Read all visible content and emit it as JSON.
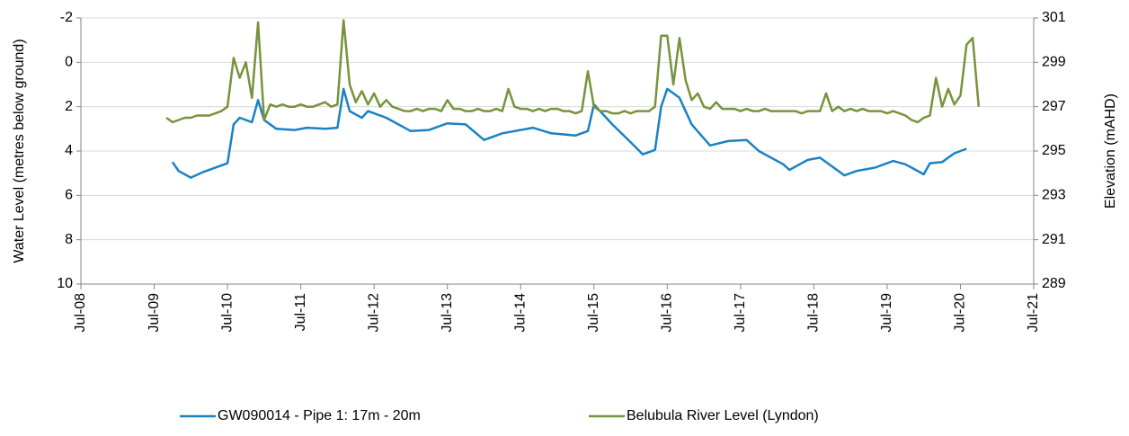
{
  "chart_data": {
    "type": "line",
    "y_label": "Water Level (metres below ground)",
    "y2_label": "Elevation (mAHD)",
    "xlim": [
      "2008-07",
      "2021-07"
    ],
    "xticks": [
      {
        "value": "2008-07",
        "label": "Jul-08"
      },
      {
        "value": "2009-07",
        "label": "Jul-09"
      },
      {
        "value": "2010-07",
        "label": "Jul-10"
      },
      {
        "value": "2011-07",
        "label": "Jul-11"
      },
      {
        "value": "2012-07",
        "label": "Jul-12"
      },
      {
        "value": "2013-07",
        "label": "Jul-13"
      },
      {
        "value": "2014-07",
        "label": "Jul-14"
      },
      {
        "value": "2015-07",
        "label": "Jul-15"
      },
      {
        "value": "2016-07",
        "label": "Jul-16"
      },
      {
        "value": "2017-07",
        "label": "Jul-17"
      },
      {
        "value": "2018-07",
        "label": "Jul-18"
      },
      {
        "value": "2019-07",
        "label": "Jul-19"
      },
      {
        "value": "2020-07",
        "label": "Jul-20"
      },
      {
        "value": "2021-07",
        "label": "Jul-21"
      }
    ],
    "ylim": [
      -2,
      10
    ],
    "y_inverted": true,
    "yticks": [
      -2,
      0,
      2,
      4,
      6,
      8,
      10
    ],
    "y2lim": [
      289,
      301
    ],
    "y2ticks": [
      289,
      291,
      293,
      295,
      297,
      299,
      301
    ],
    "grid": true,
    "legend": "bottom",
    "series": [
      {
        "name": "GW090014 - Pipe 1: 17m - 20m",
        "color": "#1a82c4",
        "x": [
          "2009-10",
          "2009-11",
          "2010-01",
          "2010-03",
          "2010-07",
          "2010-08",
          "2010-09",
          "2010-11",
          "2010-12",
          "2011-01",
          "2011-03",
          "2011-06",
          "2011-08",
          "2011-11",
          "2012-01",
          "2012-02",
          "2012-03",
          "2012-05",
          "2012-06",
          "2012-09",
          "2013-01",
          "2013-04",
          "2013-07",
          "2013-10",
          "2014-01",
          "2014-04",
          "2014-09",
          "2014-12",
          "2015-04",
          "2015-06",
          "2015-07",
          "2015-10",
          "2016-01",
          "2016-03",
          "2016-05",
          "2016-06",
          "2016-07",
          "2016-09",
          "2016-11",
          "2017-02",
          "2017-05",
          "2017-08",
          "2017-10",
          "2018-02",
          "2018-03",
          "2018-06",
          "2018-08",
          "2018-12",
          "2019-02",
          "2019-05",
          "2019-08",
          "2019-10",
          "2020-01",
          "2020-02",
          "2020-04",
          "2020-06",
          "2020-08"
        ],
        "values": [
          4.5,
          4.9,
          5.2,
          4.95,
          4.55,
          2.8,
          2.5,
          2.7,
          1.7,
          2.6,
          3.0,
          3.05,
          2.95,
          3.0,
          2.95,
          1.2,
          2.2,
          2.5,
          2.2,
          2.5,
          3.1,
          3.05,
          2.75,
          2.8,
          3.5,
          3.2,
          2.95,
          3.2,
          3.3,
          3.1,
          1.9,
          2.8,
          3.6,
          4.15,
          3.95,
          2.0,
          1.2,
          1.6,
          2.8,
          3.75,
          3.55,
          3.5,
          4.0,
          4.6,
          4.85,
          4.4,
          4.3,
          5.1,
          4.9,
          4.75,
          4.45,
          4.6,
          5.05,
          4.55,
          4.5,
          4.1,
          3.9
        ]
      },
      {
        "name": "Belubula River Level (Lyndon)",
        "color": "#77933c",
        "axis": "y2",
        "x": [
          "2009-09",
          "2009-10",
          "2009-11",
          "2009-12",
          "2010-01",
          "2010-02",
          "2010-03",
          "2010-04",
          "2010-05",
          "2010-06",
          "2010-07",
          "2010-08",
          "2010-09",
          "2010-10",
          "2010-11",
          "2010-12",
          "2011-01",
          "2011-02",
          "2011-03",
          "2011-04",
          "2011-05",
          "2011-06",
          "2011-07",
          "2011-08",
          "2011-09",
          "2011-10",
          "2011-11",
          "2011-12",
          "2012-01",
          "2012-02",
          "2012-03",
          "2012-04",
          "2012-05",
          "2012-06",
          "2012-07",
          "2012-08",
          "2012-09",
          "2012-10",
          "2012-11",
          "2012-12",
          "2013-01",
          "2013-02",
          "2013-03",
          "2013-04",
          "2013-05",
          "2013-06",
          "2013-07",
          "2013-08",
          "2013-09",
          "2013-10",
          "2013-11",
          "2013-12",
          "2014-01",
          "2014-02",
          "2014-03",
          "2014-04",
          "2014-05",
          "2014-06",
          "2014-07",
          "2014-08",
          "2014-09",
          "2014-10",
          "2014-11",
          "2014-12",
          "2015-01",
          "2015-02",
          "2015-03",
          "2015-04",
          "2015-05",
          "2015-06",
          "2015-07",
          "2015-08",
          "2015-09",
          "2015-10",
          "2015-11",
          "2015-12",
          "2016-01",
          "2016-02",
          "2016-03",
          "2016-04",
          "2016-05",
          "2016-06",
          "2016-07",
          "2016-08",
          "2016-09",
          "2016-10",
          "2016-11",
          "2016-12",
          "2017-01",
          "2017-02",
          "2017-03",
          "2017-04",
          "2017-05",
          "2017-06",
          "2017-07",
          "2017-08",
          "2017-09",
          "2017-10",
          "2017-11",
          "2017-12",
          "2018-01",
          "2018-02",
          "2018-03",
          "2018-04",
          "2018-05",
          "2018-06",
          "2018-07",
          "2018-08",
          "2018-09",
          "2018-10",
          "2018-11",
          "2018-12",
          "2019-01",
          "2019-02",
          "2019-03",
          "2019-04",
          "2019-05",
          "2019-06",
          "2019-07",
          "2019-08",
          "2019-09",
          "2019-10",
          "2019-11",
          "2019-12",
          "2020-01",
          "2020-02",
          "2020-03",
          "2020-04",
          "2020-05",
          "2020-06",
          "2020-07",
          "2020-08",
          "2020-09",
          "2020-10"
        ],
        "values": [
          296.5,
          296.3,
          296.4,
          296.5,
          296.5,
          296.6,
          296.6,
          296.6,
          296.7,
          296.8,
          297.0,
          299.2,
          298.3,
          299.0,
          297.4,
          300.8,
          296.4,
          297.1,
          297.0,
          297.1,
          297.0,
          297.0,
          297.1,
          297.0,
          297.0,
          297.1,
          297.2,
          297.0,
          297.1,
          300.9,
          298.0,
          297.2,
          297.7,
          297.1,
          297.6,
          297.0,
          297.3,
          297.0,
          296.9,
          296.8,
          296.8,
          296.9,
          296.8,
          296.9,
          296.9,
          296.8,
          297.3,
          296.9,
          296.9,
          296.8,
          296.8,
          296.9,
          296.8,
          296.8,
          296.9,
          296.8,
          297.8,
          297.0,
          296.9,
          296.9,
          296.8,
          296.9,
          296.8,
          296.9,
          296.9,
          296.8,
          296.8,
          296.7,
          296.8,
          298.6,
          297.0,
          296.8,
          296.8,
          296.7,
          296.7,
          296.8,
          296.7,
          296.8,
          296.8,
          296.8,
          297.0,
          300.2,
          300.2,
          298.0,
          300.1,
          298.2,
          297.3,
          297.6,
          297.0,
          296.9,
          297.2,
          296.9,
          296.9,
          296.9,
          296.8,
          296.9,
          296.8,
          296.8,
          296.9,
          296.8,
          296.8,
          296.8,
          296.8,
          296.8,
          296.7,
          296.8,
          296.8,
          296.8,
          297.6,
          296.8,
          297.0,
          296.8,
          296.9,
          296.8,
          296.9,
          296.8,
          296.8,
          296.8,
          296.7,
          296.8,
          296.7,
          296.6,
          296.4,
          296.3,
          296.5,
          296.6,
          298.3,
          297.0,
          297.8,
          297.1,
          297.5,
          299.8,
          300.1,
          297.0
        ]
      }
    ]
  }
}
